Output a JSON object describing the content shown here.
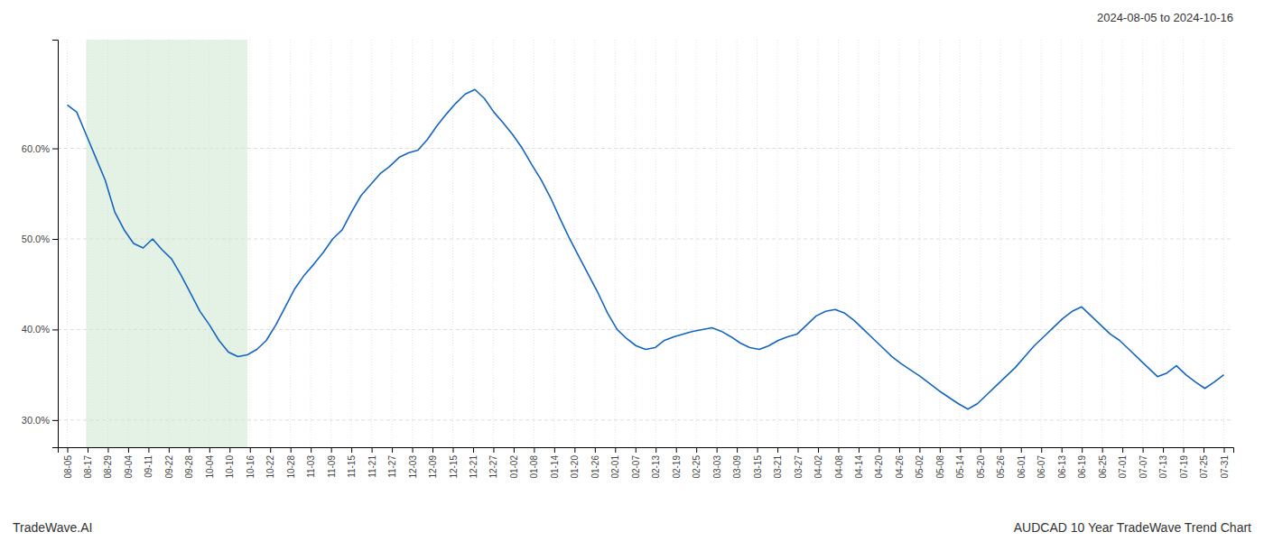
{
  "chart_data": {
    "type": "line",
    "title": "2024-08-05 to 2024-10-16",
    "annotations": [
      "TradeWave.AI",
      "AUDCAD 10 Year TradeWave Trend Chart"
    ],
    "color": "#1565C0",
    "grid": true,
    "shaded_region": {
      "x": [
        2,
        19
      ],
      "color": "#c8e6c9"
    },
    "xlim": [
      -1,
      123
    ],
    "ylim": [
      0.27,
      0.72
    ],
    "yticks": [
      {
        "value": 0.3,
        "label": "30.0%"
      },
      {
        "value": 0.4,
        "label": "40.0%"
      },
      {
        "value": 0.5,
        "label": "50.0%"
      },
      {
        "value": 0.6,
        "label": "60.0%"
      }
    ],
    "xticks": [
      {
        "value": 0,
        "label": "08-05"
      },
      {
        "value": 2.140351,
        "label": "08-17"
      },
      {
        "value": 4.280702,
        "label": "08-29"
      },
      {
        "value": 6.421053,
        "label": "09-04"
      },
      {
        "value": 8.561404,
        "label": "09-11"
      },
      {
        "value": 10.701754,
        "label": "09-22"
      },
      {
        "value": 12.842105,
        "label": "09-28"
      },
      {
        "value": 14.982456,
        "label": "10-04"
      },
      {
        "value": 17.122807,
        "label": "10-10"
      },
      {
        "value": 19.263158,
        "label": "10-16"
      },
      {
        "value": 21.403509,
        "label": "10-22"
      },
      {
        "value": 23.54386,
        "label": "10-28"
      },
      {
        "value": 25.684211,
        "label": "11-03"
      },
      {
        "value": 27.824561,
        "label": "11-09"
      },
      {
        "value": 29.964912,
        "label": "11-15"
      },
      {
        "value": 32.105263,
        "label": "11-21"
      },
      {
        "value": 34.245614,
        "label": "11-27"
      },
      {
        "value": 36.385965,
        "label": "12-03"
      },
      {
        "value": 38.526316,
        "label": "12-09"
      },
      {
        "value": 40.666667,
        "label": "12-15"
      },
      {
        "value": 42.807018,
        "label": "12-21"
      },
      {
        "value": 44.947368,
        "label": "12-27"
      },
      {
        "value": 47.087719,
        "label": "01-02"
      },
      {
        "value": 49.22807,
        "label": "01-08"
      },
      {
        "value": 51.368421,
        "label": "01-14"
      },
      {
        "value": 53.508772,
        "label": "01-20"
      },
      {
        "value": 55.649123,
        "label": "01-26"
      },
      {
        "value": 57.789474,
        "label": "02-01"
      },
      {
        "value": 59.929825,
        "label": "02-07"
      },
      {
        "value": 62.070175,
        "label": "02-13"
      },
      {
        "value": 64.210526,
        "label": "02-19"
      },
      {
        "value": 66.350877,
        "label": "02-25"
      },
      {
        "value": 68.491228,
        "label": "03-03"
      },
      {
        "value": 70.631579,
        "label": "03-09"
      },
      {
        "value": 72.77193,
        "label": "03-15"
      },
      {
        "value": 74.912281,
        "label": "03-21"
      },
      {
        "value": 77.052632,
        "label": "03-27"
      },
      {
        "value": 79.192982,
        "label": "04-02"
      },
      {
        "value": 81.333333,
        "label": "04-08"
      },
      {
        "value": 83.473684,
        "label": "04-14"
      },
      {
        "value": 85.614035,
        "label": "04-20"
      },
      {
        "value": 87.754386,
        "label": "04-26"
      },
      {
        "value": 89.894737,
        "label": "05-02"
      },
      {
        "value": 92.035088,
        "label": "05-08"
      },
      {
        "value": 94.175439,
        "label": "05-14"
      },
      {
        "value": 96.315789,
        "label": "05-20"
      },
      {
        "value": 98.45614,
        "label": "05-26"
      },
      {
        "value": 100.596491,
        "label": "06-01"
      },
      {
        "value": 102.736842,
        "label": "06-07"
      },
      {
        "value": 104.877193,
        "label": "06-13"
      },
      {
        "value": 107.017544,
        "label": "06-19"
      },
      {
        "value": 109.157895,
        "label": "06-25"
      },
      {
        "value": 111.298246,
        "label": "07-01"
      },
      {
        "value": 113.438596,
        "label": "07-07"
      },
      {
        "value": 115.578947,
        "label": "07-13"
      },
      {
        "value": 117.719298,
        "label": "07-19"
      },
      {
        "value": 119.859649,
        "label": "07-25"
      },
      {
        "value": 122,
        "label": "07-31"
      }
    ],
    "x": [
      0,
      1,
      2,
      3,
      4,
      5,
      6,
      7,
      8,
      9,
      10,
      11,
      12,
      13,
      14,
      15,
      16,
      17,
      18,
      19,
      20,
      21,
      22,
      23,
      24,
      25,
      26,
      27,
      28,
      29,
      30,
      31,
      32,
      33,
      34,
      35,
      36,
      37,
      38,
      39,
      40,
      41,
      42,
      43,
      44,
      45,
      46,
      47,
      48,
      49,
      50,
      51,
      52,
      53,
      54,
      55,
      56,
      57,
      58,
      59,
      60,
      61,
      62,
      63,
      64,
      65,
      66,
      67,
      68,
      69,
      70,
      71,
      72,
      73,
      74,
      75,
      76,
      77,
      78,
      79,
      80,
      81,
      82,
      83,
      84,
      85,
      86,
      87,
      88,
      89,
      90,
      91,
      92,
      93,
      94,
      95,
      96,
      97,
      98,
      99,
      100,
      101,
      102,
      103,
      104,
      105,
      106,
      107,
      108,
      109,
      110,
      111,
      112,
      113,
      114,
      115,
      116,
      117,
      118,
      119,
      120,
      121,
      122
    ],
    "values": [
      0.648,
      0.64,
      0.615,
      0.59,
      0.565,
      0.53,
      0.51,
      0.495,
      0.49,
      0.5,
      0.488,
      0.478,
      0.46,
      0.44,
      0.42,
      0.405,
      0.388,
      0.375,
      0.37,
      0.372,
      0.378,
      0.388,
      0.405,
      0.425,
      0.445,
      0.46,
      0.472,
      0.485,
      0.5,
      0.51,
      0.53,
      0.548,
      0.56,
      0.572,
      0.58,
      0.59,
      0.595,
      0.598,
      0.61,
      0.625,
      0.638,
      0.65,
      0.66,
      0.665,
      0.655,
      0.64,
      0.628,
      0.615,
      0.6,
      0.582,
      0.565,
      0.545,
      0.522,
      0.5,
      0.48,
      0.46,
      0.44,
      0.418,
      0.4,
      0.39,
      0.382,
      0.378,
      0.38,
      0.388,
      0.392,
      0.395,
      0.398,
      0.4,
      0.402,
      0.398,
      0.392,
      0.385,
      0.38,
      0.378,
      0.382,
      0.388,
      0.392,
      0.395,
      0.405,
      0.415,
      0.42,
      0.422,
      0.418,
      0.41,
      0.4,
      0.39,
      0.38,
      0.37,
      0.362,
      0.355,
      0.348,
      0.34,
      0.332,
      0.325,
      0.318,
      0.312,
      0.318,
      0.328,
      0.338,
      0.348,
      0.358,
      0.37,
      0.382,
      0.392,
      0.402,
      0.412,
      0.42,
      0.425,
      0.415,
      0.405,
      0.395,
      0.388,
      0.378,
      0.368,
      0.358,
      0.348,
      0.352,
      0.36,
      0.35,
      0.342,
      0.335,
      0.342,
      0.35
    ]
  }
}
